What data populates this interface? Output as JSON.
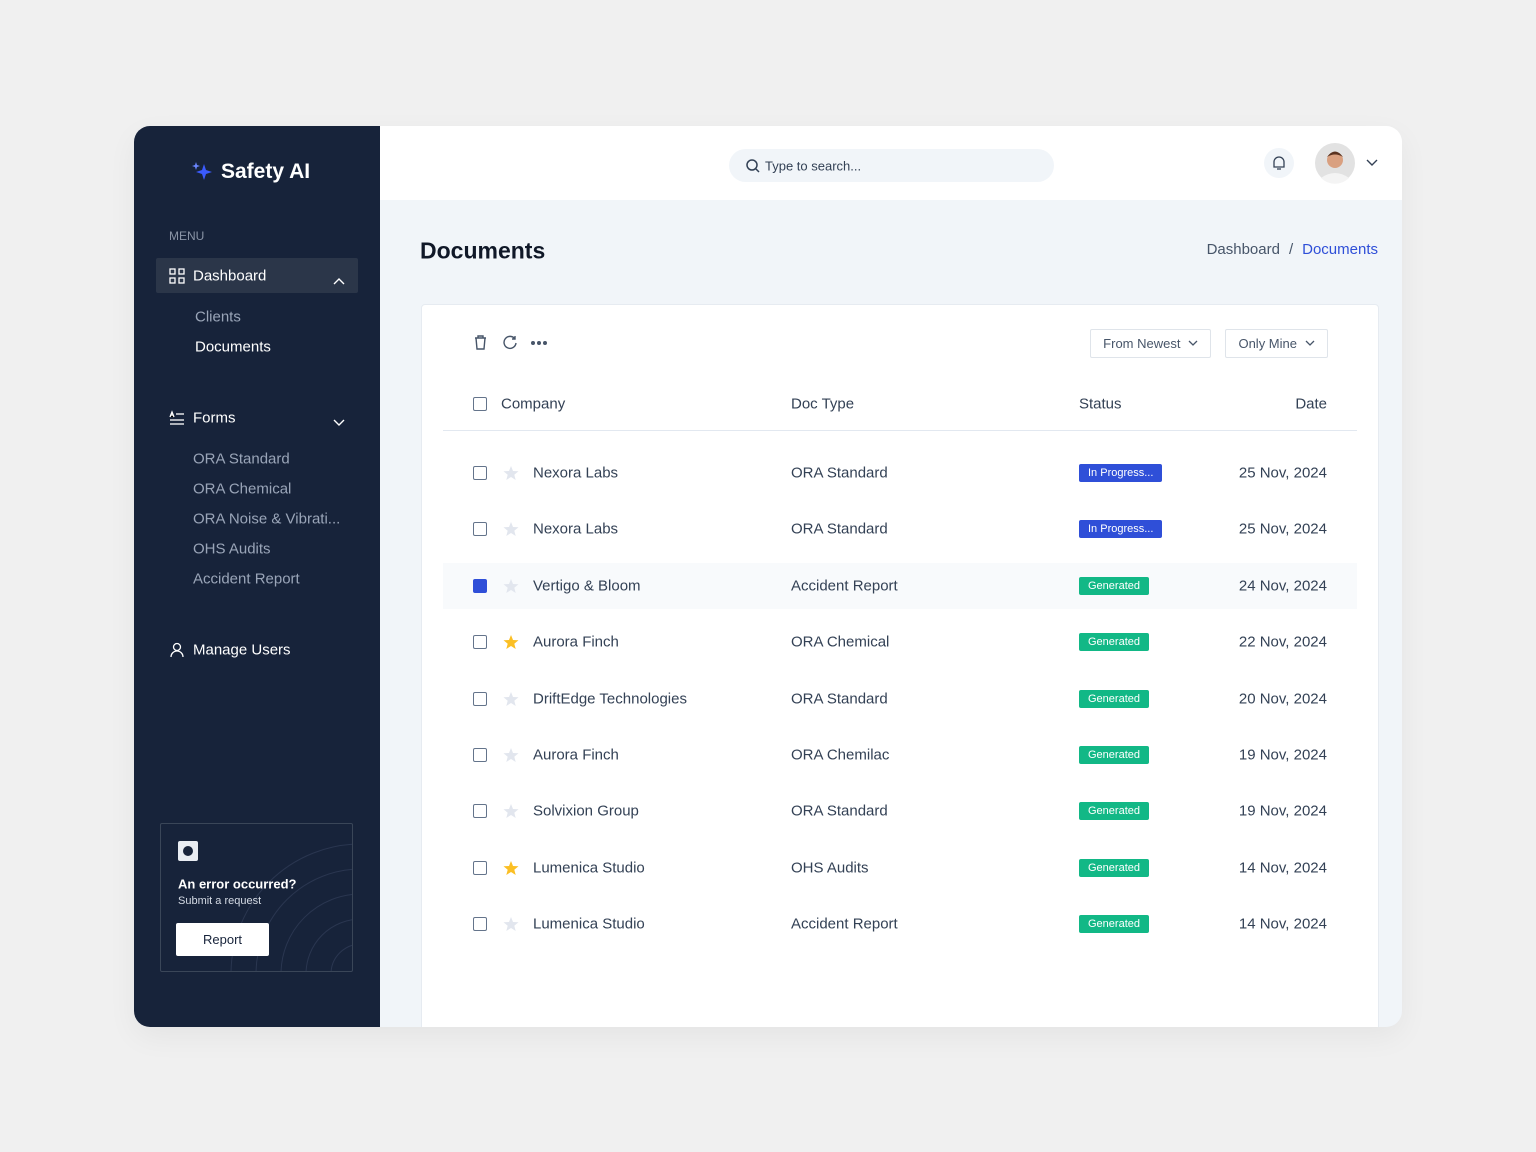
{
  "brand": "Safety AI",
  "sidebar": {
    "menu_label": "MENU",
    "nav": [
      {
        "label": "Dashboard",
        "active": true,
        "children": [
          {
            "label": "Clients",
            "active": false
          },
          {
            "label": "Documents",
            "active": true
          }
        ]
      },
      {
        "label": "Forms",
        "active": false,
        "children": [
          {
            "label": "ORA Standard",
            "active": false
          },
          {
            "label": "ORA Chemical",
            "active": false
          },
          {
            "label": "ORA Noise & Vibrati...",
            "active": false
          },
          {
            "label": "OHS Audits",
            "active": false
          },
          {
            "label": "Accident Report",
            "active": false
          }
        ]
      },
      {
        "label": "Manage Users",
        "active": false,
        "children": []
      }
    ]
  },
  "help": {
    "title": "An error occurred?",
    "subtitle": "Submit a request",
    "button": "Report"
  },
  "topbar": {
    "search_placeholder": "Type to search..."
  },
  "header": {
    "title": "Documents",
    "breadcrumb": [
      "Dashboard",
      "/",
      "Documents"
    ]
  },
  "table": {
    "filters": [
      "From Newest",
      "Only Mine"
    ],
    "columns": [
      "Company",
      "Doc Type",
      "Status",
      "Date"
    ],
    "rows": [
      {
        "company": "Nexora Labs",
        "doc_type": "ORA Standard",
        "status": "In Progress...",
        "color": "#2f4fd8",
        "date": "25 Nov, 2024",
        "starred": false,
        "selected": false
      },
      {
        "company": "Nexora Labs",
        "doc_type": "ORA Standard",
        "status": "In Progress...",
        "color": "#2f4fd8",
        "date": "25 Nov, 2024",
        "starred": false,
        "selected": false
      },
      {
        "company": "Vertigo & Bloom",
        "doc_type": "Accident Report",
        "status": "Generated",
        "color": "#12b886",
        "date": "24 Nov, 2024",
        "starred": false,
        "selected": true
      },
      {
        "company": "Aurora Finch",
        "doc_type": "ORA Chemical",
        "status": "Generated",
        "color": "#12b886",
        "date": "22 Nov, 2024",
        "starred": true,
        "selected": false
      },
      {
        "company": "DriftEdge Technologies",
        "doc_type": "ORA Standard",
        "status": "Generated",
        "color": "#12b886",
        "date": "20 Nov, 2024",
        "starred": false,
        "selected": false
      },
      {
        "company": "Aurora Finch",
        "doc_type": "ORA Chemilac",
        "status": "Generated",
        "color": "#12b886",
        "date": "19 Nov, 2024",
        "starred": false,
        "selected": false
      },
      {
        "company": "Solvixion Group",
        "doc_type": "ORA Standard",
        "status": "Generated",
        "color": "#12b886",
        "date": "19 Nov, 2024",
        "starred": false,
        "selected": false
      },
      {
        "company": "Lumenica Studio",
        "doc_type": "OHS Audits",
        "status": "Generated",
        "color": "#12b886",
        "date": "14 Nov, 2024",
        "starred": true,
        "selected": false
      },
      {
        "company": "Lumenica Studio",
        "doc_type": "Accident Report",
        "status": "Generated",
        "color": "#12b886",
        "date": "14 Nov, 2024",
        "starred": false,
        "selected": false
      }
    ]
  }
}
